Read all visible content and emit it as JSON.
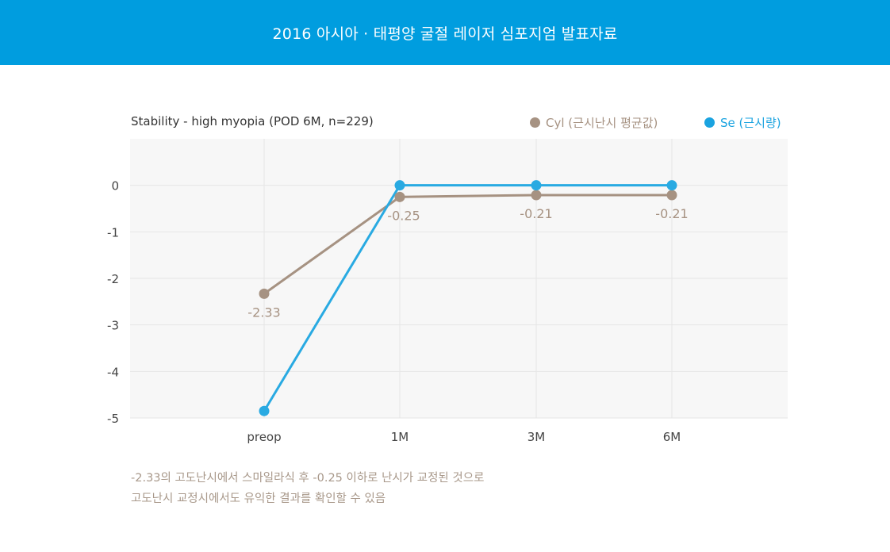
{
  "header": {
    "title": "2016 아시아 · 태평양 굴절 레이저 심포지엄 발표자료"
  },
  "chart_data": {
    "type": "line",
    "title": "Stability - high myopia (POD 6M, n=229)",
    "categories": [
      "preop",
      "1M",
      "3M",
      "6M"
    ],
    "ylim": [
      -5,
      1
    ],
    "yticks": [
      0,
      -1,
      -2,
      -3,
      -4,
      -5
    ],
    "grid": true,
    "legend_position": "top-right",
    "series": [
      {
        "name": "Cyl (근시난시 평균값)",
        "color": "#a69282",
        "values": [
          -2.33,
          -0.25,
          -0.21,
          -0.21
        ],
        "labels": [
          "-2.33",
          "-0.25",
          "-0.21",
          "-0.21"
        ]
      },
      {
        "name": "Se (근시량)",
        "color": "#29aae2",
        "values": [
          -4.85,
          0,
          0,
          0
        ]
      }
    ]
  },
  "note": {
    "line1": "-2.33의 고도난시에서 스마일라식 후 -0.25 이하로 난시가 교정된 것으로",
    "line2": "고도난시 교정시에서도 유익한 결과를 확인할 수 있음"
  }
}
